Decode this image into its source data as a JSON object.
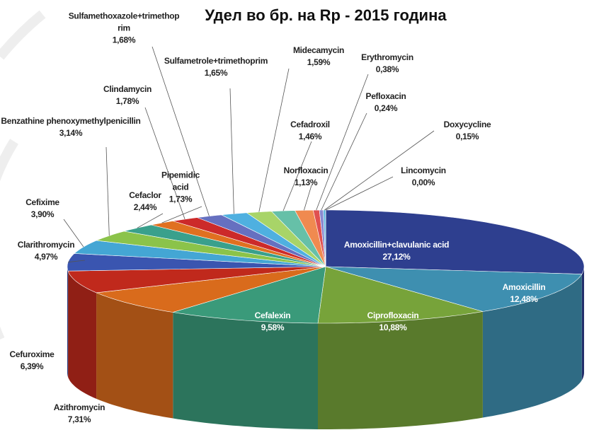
{
  "chart_data": {
    "type": "pie",
    "title": "Удел во бр. на Rp - 2015 година",
    "categories": [
      "Amoxicillin+clavulanic acid",
      "Amoxicillin",
      "Ciprofloxacin",
      "Cefalexin",
      "Azithromycin",
      "Cefuroxime",
      "Clarithromycin",
      "Cefixime",
      "Benzathine phenoxymethylpenicillin",
      "Cefaclor",
      "Pipemidic acid",
      "Clindamycin",
      "Sulfamethoxazole+trimethoprim",
      "Sulfametrole+trimethoprim",
      "Midecamycin",
      "Cefadroxil",
      "Norfloxacin",
      "Erythromycin",
      "Pefloxacin",
      "Doxycycline",
      "Lincomycin"
    ],
    "values": [
      27.12,
      12.48,
      10.88,
      9.58,
      7.31,
      6.39,
      4.97,
      3.9,
      3.14,
      2.44,
      1.73,
      1.78,
      1.68,
      1.65,
      1.59,
      1.46,
      1.13,
      0.38,
      0.24,
      0.15,
      0.0
    ],
    "value_labels": [
      "27,12%",
      "12,48%",
      "10,88%",
      "9,58%",
      "7,31%",
      "6,39%",
      "4,97%",
      "3,90%",
      "3,14%",
      "2,44%",
      "1,73%",
      "1,78%",
      "1,68%",
      "1,65%",
      "1,59%",
      "1,46%",
      "1,13%",
      "0,38%",
      "0,24%",
      "0,15%",
      "0,00%"
    ],
    "colors": [
      "#2e3f8f",
      "#3e8fb0",
      "#77a33a",
      "#3a9a7a",
      "#d96b1c",
      "#c0291c",
      "#3a55b0",
      "#44a6d4",
      "#8bc34a",
      "#3aa08c",
      "#e07020",
      "#cc2a2a",
      "#6670c0",
      "#4fb0e0",
      "#a8d468",
      "#66c0a8",
      "#f08a50",
      "#e05050",
      "#8a8ad0",
      "#60b8e0",
      "#a0d060"
    ]
  }
}
